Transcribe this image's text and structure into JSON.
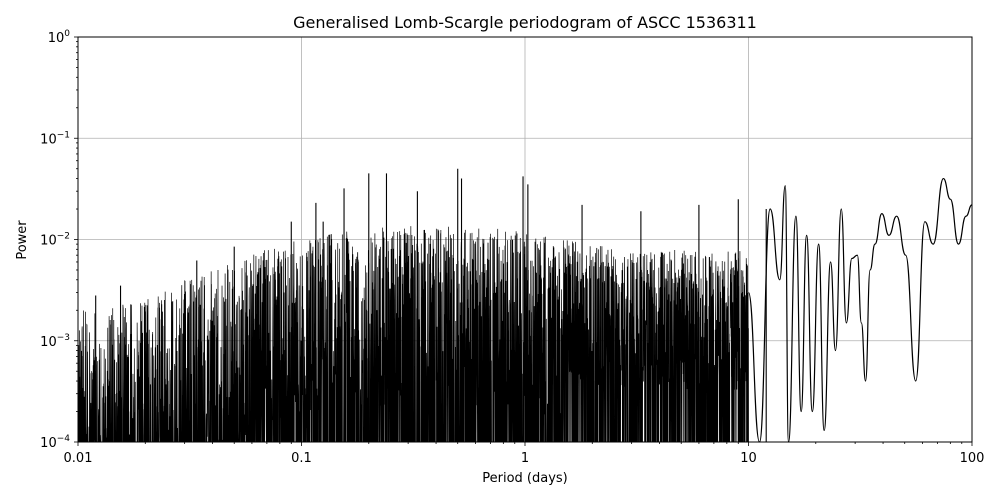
{
  "chart_data": {
    "type": "line",
    "title": "Generalised Lomb-Scargle periodogram of ASCC 1536311",
    "xlabel": "Period (days)",
    "ylabel": "Power",
    "xscale": "log",
    "yscale": "log",
    "xlim": [
      0.01,
      100
    ],
    "ylim": [
      0.0001,
      1
    ],
    "grid": true,
    "line_color": "#000000",
    "x_ticks": [
      {
        "value": 0.01,
        "label": "0.01"
      },
      {
        "value": 0.1,
        "label": "0.1"
      },
      {
        "value": 1,
        "label": "1"
      },
      {
        "value": 10,
        "label": "10"
      },
      {
        "value": 100,
        "label": "100"
      }
    ],
    "y_ticks": [
      {
        "value": 0.0001,
        "base": "10",
        "exp": "−4"
      },
      {
        "value": 0.001,
        "base": "10",
        "exp": "−3"
      },
      {
        "value": 0.01,
        "base": "10",
        "exp": "−2"
      },
      {
        "value": 0.1,
        "base": "10",
        "exp": "−1"
      },
      {
        "value": 1,
        "base": "10",
        "exp": "0"
      }
    ],
    "peaks": [
      {
        "x": 0.012,
        "y": 0.0028
      },
      {
        "x": 0.0155,
        "y": 0.0035
      },
      {
        "x": 0.034,
        "y": 0.0062
      },
      {
        "x": 0.05,
        "y": 0.0085
      },
      {
        "x": 0.09,
        "y": 0.015
      },
      {
        "x": 0.116,
        "y": 0.023
      },
      {
        "x": 0.125,
        "y": 0.015
      },
      {
        "x": 0.155,
        "y": 0.032
      },
      {
        "x": 0.2,
        "y": 0.045
      },
      {
        "x": 0.24,
        "y": 0.045
      },
      {
        "x": 0.33,
        "y": 0.03
      },
      {
        "x": 0.5,
        "y": 0.05
      },
      {
        "x": 0.52,
        "y": 0.04
      },
      {
        "x": 0.98,
        "y": 0.042
      },
      {
        "x": 1.03,
        "y": 0.035
      },
      {
        "x": 1.8,
        "y": 0.022
      },
      {
        "x": 3.3,
        "y": 0.019
      },
      {
        "x": 6.0,
        "y": 0.022
      },
      {
        "x": 9.0,
        "y": 0.025
      },
      {
        "x": 12.0,
        "y": 0.02
      }
    ],
    "envelope_top": [
      {
        "x": 0.01,
        "y": 0.002
      },
      {
        "x": 0.02,
        "y": 0.0025
      },
      {
        "x": 0.03,
        "y": 0.004
      },
      {
        "x": 0.05,
        "y": 0.006
      },
      {
        "x": 0.08,
        "y": 0.009
      },
      {
        "x": 0.12,
        "y": 0.011
      },
      {
        "x": 0.2,
        "y": 0.013
      },
      {
        "x": 0.4,
        "y": 0.014
      },
      {
        "x": 0.8,
        "y": 0.013
      },
      {
        "x": 1.5,
        "y": 0.01
      },
      {
        "x": 3.0,
        "y": 0.008
      },
      {
        "x": 6.0,
        "y": 0.008
      },
      {
        "x": 10.0,
        "y": 0.008
      }
    ],
    "long_period": [
      {
        "x": 10,
        "y": 0.003
      },
      {
        "x": 11.2,
        "y": 0.0001
      },
      {
        "x": 12.5,
        "y": 0.02
      },
      {
        "x": 13.8,
        "y": 0.004
      },
      {
        "x": 14.6,
        "y": 0.034
      },
      {
        "x": 15.1,
        "y": 0.0001
      },
      {
        "x": 16.3,
        "y": 0.017
      },
      {
        "x": 17.2,
        "y": 0.0002
      },
      {
        "x": 18.2,
        "y": 0.011
      },
      {
        "x": 19.3,
        "y": 0.0002
      },
      {
        "x": 20.6,
        "y": 0.009
      },
      {
        "x": 21.8,
        "y": 0.00013
      },
      {
        "x": 23.3,
        "y": 0.006
      },
      {
        "x": 24.5,
        "y": 0.0008
      },
      {
        "x": 26.0,
        "y": 0.02
      },
      {
        "x": 27.4,
        "y": 0.0015
      },
      {
        "x": 29.0,
        "y": 0.0065
      },
      {
        "x": 30.7,
        "y": 0.007
      },
      {
        "x": 32.0,
        "y": 0.0015
      },
      {
        "x": 33.4,
        "y": 0.0004
      },
      {
        "x": 35.0,
        "y": 0.005
      },
      {
        "x": 36.8,
        "y": 0.009
      },
      {
        "x": 39.5,
        "y": 0.018
      },
      {
        "x": 42.5,
        "y": 0.011
      },
      {
        "x": 46.0,
        "y": 0.017
      },
      {
        "x": 50.5,
        "y": 0.007
      },
      {
        "x": 56.0,
        "y": 0.0004
      },
      {
        "x": 61.5,
        "y": 0.015
      },
      {
        "x": 67.0,
        "y": 0.009
      },
      {
        "x": 74.5,
        "y": 0.04
      },
      {
        "x": 80.0,
        "y": 0.025
      },
      {
        "x": 87.0,
        "y": 0.009
      },
      {
        "x": 94.0,
        "y": 0.017
      },
      {
        "x": 100,
        "y": 0.022
      }
    ]
  }
}
